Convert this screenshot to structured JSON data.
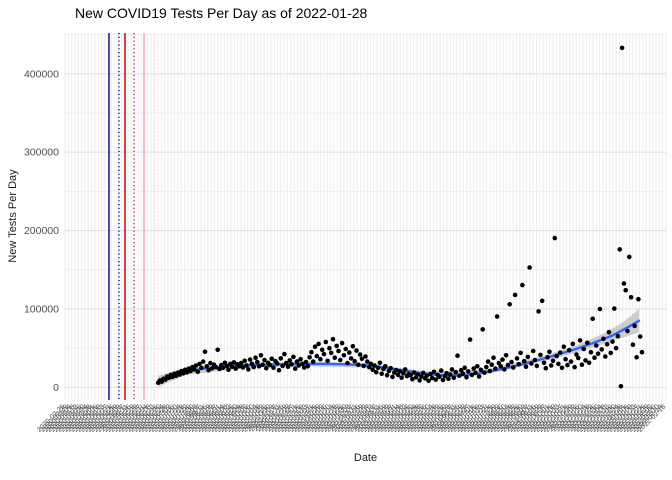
{
  "chart_data": {
    "type": "scatter",
    "title": "New COVID19 Tests Per Day as of 2022-01-28",
    "xlabel": "Date",
    "ylabel": "New Tests Per Day",
    "ylim": [
      -16000,
      452000
    ],
    "y_ticks_major": [
      0,
      100000,
      200000,
      300000,
      400000
    ],
    "y_ticks_minor": [
      50000,
      150000,
      250000,
      350000,
      450000
    ],
    "x_axis_dates": {
      "start": "2020-02-25",
      "step_days": 4,
      "count": 182
    },
    "legend": "none",
    "grid": "on",
    "colors": {
      "grid_major": "#E2E2E2",
      "grid_minor": "#EDEDED",
      "point": "#000000",
      "smooth_line": "#3366FF",
      "smooth_band": "rgba(150,150,150,0.45)",
      "axis_text": "#4D4D4D",
      "title_text": "#000000"
    },
    "point_radius": 2.3,
    "event_vlines": [
      {
        "frac": 0.0732,
        "color": "#00008B",
        "style": "solid",
        "width": 1.4
      },
      {
        "frac": 0.0898,
        "color": "#0000CD",
        "style": "dotted",
        "width": 1.4
      },
      {
        "frac": 0.0998,
        "color": "#DD1111",
        "style": "solid",
        "width": 1.6
      },
      {
        "frac": 0.1148,
        "color": "#CC2222",
        "style": "dotted",
        "width": 1.4
      },
      {
        "frac": 0.1314,
        "color": "#FFB3C6",
        "style": "solid",
        "width": 1.8
      },
      {
        "frac": 0.1481,
        "color": "#FFD3DD",
        "style": "dotted",
        "width": 1.4
      }
    ],
    "smooth_line": [
      [
        0.155,
        8000
      ],
      [
        0.17,
        13000
      ],
      [
        0.19,
        18000
      ],
      [
        0.21,
        21500
      ],
      [
        0.24,
        25000
      ],
      [
        0.28,
        27500
      ],
      [
        0.32,
        28600
      ],
      [
        0.36,
        29500
      ],
      [
        0.4,
        30000
      ],
      [
        0.44,
        30000
      ],
      [
        0.47,
        29500
      ],
      [
        0.5,
        28000
      ],
      [
        0.53,
        25500
      ],
      [
        0.56,
        22000
      ],
      [
        0.59,
        18500
      ],
      [
        0.62,
        16000
      ],
      [
        0.64,
        15000
      ],
      [
        0.66,
        15500
      ],
      [
        0.68,
        17000
      ],
      [
        0.7,
        19500
      ],
      [
        0.73,
        24000
      ],
      [
        0.76,
        29500
      ],
      [
        0.79,
        35500
      ],
      [
        0.82,
        42000
      ],
      [
        0.85,
        49000
      ],
      [
        0.88,
        57000
      ],
      [
        0.91,
        66000
      ],
      [
        0.93,
        74000
      ],
      [
        0.955,
        85000
      ]
    ],
    "smooth_band": [
      [
        0.155,
        1000,
        15000
      ],
      [
        0.2,
        15500,
        24500
      ],
      [
        0.3,
        25000,
        31000
      ],
      [
        0.4,
        27000,
        33000
      ],
      [
        0.5,
        25000,
        31000
      ],
      [
        0.6,
        14500,
        20500
      ],
      [
        0.7,
        16500,
        22500
      ],
      [
        0.8,
        34000,
        41000
      ],
      [
        0.85,
        44500,
        53500
      ],
      [
        0.9,
        56000,
        70000
      ],
      [
        0.93,
        64000,
        84000
      ],
      [
        0.955,
        70000,
        100000
      ]
    ],
    "points": [
      [
        0.155,
        6000
      ],
      [
        0.158,
        9000
      ],
      [
        0.161,
        7500
      ],
      [
        0.164,
        11000
      ],
      [
        0.167,
        10000
      ],
      [
        0.17,
        14000
      ],
      [
        0.173,
        12500
      ],
      [
        0.176,
        16000
      ],
      [
        0.179,
        13500
      ],
      [
        0.182,
        17500
      ],
      [
        0.185,
        15000
      ],
      [
        0.188,
        19000
      ],
      [
        0.191,
        16500
      ],
      [
        0.194,
        21000
      ],
      [
        0.197,
        18000
      ],
      [
        0.2,
        22500
      ],
      [
        0.203,
        19500
      ],
      [
        0.206,
        24000
      ],
      [
        0.209,
        21000
      ],
      [
        0.212,
        26000
      ],
      [
        0.215,
        23000
      ],
      [
        0.218,
        28000
      ],
      [
        0.221,
        20000
      ],
      [
        0.224,
        30000
      ],
      [
        0.227,
        25000
      ],
      [
        0.23,
        33000
      ],
      [
        0.233,
        45500
      ],
      [
        0.236,
        27000
      ],
      [
        0.239,
        22000
      ],
      [
        0.242,
        31000
      ],
      [
        0.245,
        24500
      ],
      [
        0.248,
        29000
      ],
      [
        0.251,
        26000
      ],
      [
        0.254,
        48000
      ],
      [
        0.257,
        23500
      ],
      [
        0.26,
        28500
      ],
      [
        0.263,
        25000
      ],
      [
        0.266,
        31500
      ],
      [
        0.269,
        27500
      ],
      [
        0.272,
        22500
      ],
      [
        0.275,
        30000
      ],
      [
        0.278,
        26500
      ],
      [
        0.281,
        32000
      ],
      [
        0.284,
        24000
      ],
      [
        0.287,
        29500
      ],
      [
        0.29,
        27000
      ],
      [
        0.293,
        31000
      ],
      [
        0.296,
        25500
      ],
      [
        0.299,
        34000
      ],
      [
        0.302,
        28000
      ],
      [
        0.305,
        23000
      ],
      [
        0.308,
        35500
      ],
      [
        0.311,
        30000
      ],
      [
        0.314,
        26000
      ],
      [
        0.317,
        38000
      ],
      [
        0.32,
        32500
      ],
      [
        0.323,
        27000
      ],
      [
        0.326,
        41000
      ],
      [
        0.329,
        29000
      ],
      [
        0.332,
        35000
      ],
      [
        0.335,
        24500
      ],
      [
        0.338,
        31500
      ],
      [
        0.341,
        28500
      ],
      [
        0.344,
        36500
      ],
      [
        0.347,
        25000
      ],
      [
        0.35,
        33500
      ],
      [
        0.353,
        30500
      ],
      [
        0.356,
        22000
      ],
      [
        0.359,
        37000
      ],
      [
        0.362,
        27500
      ],
      [
        0.365,
        42500
      ],
      [
        0.368,
        31000
      ],
      [
        0.371,
        26500
      ],
      [
        0.374,
        34500
      ],
      [
        0.377,
        29500
      ],
      [
        0.38,
        39000
      ],
      [
        0.383,
        24000
      ],
      [
        0.386,
        33000
      ],
      [
        0.389,
        28000
      ],
      [
        0.392,
        36000
      ],
      [
        0.395,
        30000
      ],
      [
        0.398,
        25500
      ],
      [
        0.401,
        32500
      ],
      [
        0.404,
        27000
      ],
      [
        0.407,
        38500
      ],
      [
        0.41,
        45000
      ],
      [
        0.413,
        33000
      ],
      [
        0.416,
        52000
      ],
      [
        0.419,
        40000
      ],
      [
        0.422,
        55500
      ],
      [
        0.425,
        36000
      ],
      [
        0.428,
        48000
      ],
      [
        0.431,
        42500
      ],
      [
        0.434,
        58000
      ],
      [
        0.437,
        34000
      ],
      [
        0.44,
        50000
      ],
      [
        0.443,
        44000
      ],
      [
        0.446,
        61500
      ],
      [
        0.449,
        38000
      ],
      [
        0.452,
        53000
      ],
      [
        0.455,
        46500
      ],
      [
        0.458,
        35000
      ],
      [
        0.461,
        56500
      ],
      [
        0.464,
        41000
      ],
      [
        0.467,
        49000
      ],
      [
        0.47,
        31000
      ],
      [
        0.473,
        44500
      ],
      [
        0.476,
        37000
      ],
      [
        0.479,
        52500
      ],
      [
        0.482,
        33500
      ],
      [
        0.485,
        47000
      ],
      [
        0.488,
        29000
      ],
      [
        0.491,
        42000
      ],
      [
        0.494,
        36500
      ],
      [
        0.497,
        27500
      ],
      [
        0.5,
        39500
      ],
      [
        0.503,
        33000
      ],
      [
        0.506,
        26000
      ],
      [
        0.509,
        30000
      ],
      [
        0.512,
        22500
      ],
      [
        0.515,
        28000
      ],
      [
        0.518,
        19500
      ],
      [
        0.521,
        25000
      ],
      [
        0.524,
        31500
      ],
      [
        0.527,
        17500
      ],
      [
        0.53,
        23500
      ],
      [
        0.533,
        27000
      ],
      [
        0.536,
        15500
      ],
      [
        0.539,
        21000
      ],
      [
        0.542,
        24500
      ],
      [
        0.545,
        13500
      ],
      [
        0.548,
        19000
      ],
      [
        0.551,
        22000
      ],
      [
        0.554,
        16000
      ],
      [
        0.557,
        20500
      ],
      [
        0.56,
        12500
      ],
      [
        0.563,
        18000
      ],
      [
        0.566,
        23000
      ],
      [
        0.569,
        14500
      ],
      [
        0.572,
        17000
      ],
      [
        0.575,
        15500
      ],
      [
        0.578,
        10500
      ],
      [
        0.581,
        19000
      ],
      [
        0.584,
        13000
      ],
      [
        0.587,
        16500
      ],
      [
        0.59,
        9000
      ],
      [
        0.593,
        14000
      ],
      [
        0.596,
        18500
      ],
      [
        0.599,
        11500
      ],
      [
        0.602,
        15000
      ],
      [
        0.605,
        8500
      ],
      [
        0.608,
        17000
      ],
      [
        0.611,
        12000
      ],
      [
        0.614,
        20000
      ],
      [
        0.617,
        10000
      ],
      [
        0.62,
        16000
      ],
      [
        0.623,
        13500
      ],
      [
        0.626,
        21500
      ],
      [
        0.629,
        9500
      ],
      [
        0.632,
        14500
      ],
      [
        0.635,
        18000
      ],
      [
        0.638,
        11000
      ],
      [
        0.641,
        16500
      ],
      [
        0.644,
        23000
      ],
      [
        0.647,
        12500
      ],
      [
        0.65,
        19500
      ],
      [
        0.653,
        40500
      ],
      [
        0.656,
        15000
      ],
      [
        0.659,
        22000
      ],
      [
        0.662,
        17500
      ],
      [
        0.665,
        25000
      ],
      [
        0.668,
        13000
      ],
      [
        0.671,
        20500
      ],
      [
        0.674,
        61000
      ],
      [
        0.677,
        16000
      ],
      [
        0.68,
        24000
      ],
      [
        0.683,
        18500
      ],
      [
        0.686,
        27000
      ],
      [
        0.689,
        14000
      ],
      [
        0.692,
        22500
      ],
      [
        0.695,
        74000
      ],
      [
        0.698,
        19000
      ],
      [
        0.701,
        26000
      ],
      [
        0.704,
        33000
      ],
      [
        0.707,
        21000
      ],
      [
        0.71,
        29000
      ],
      [
        0.713,
        38000
      ],
      [
        0.716,
        24000
      ],
      [
        0.719,
        90500
      ],
      [
        0.722,
        31000
      ],
      [
        0.725,
        27000
      ],
      [
        0.728,
        35500
      ],
      [
        0.731,
        23000
      ],
      [
        0.734,
        41000
      ],
      [
        0.737,
        28500
      ],
      [
        0.74,
        106000
      ],
      [
        0.743,
        32500
      ],
      [
        0.746,
        25500
      ],
      [
        0.749,
        118000
      ],
      [
        0.752,
        37000
      ],
      [
        0.755,
        29500
      ],
      [
        0.758,
        44000
      ],
      [
        0.761,
        130500
      ],
      [
        0.764,
        33500
      ],
      [
        0.767,
        26500
      ],
      [
        0.77,
        39000
      ],
      [
        0.773,
        153000
      ],
      [
        0.776,
        30500
      ],
      [
        0.779,
        46500
      ],
      [
        0.782,
        35000
      ],
      [
        0.785,
        27500
      ],
      [
        0.788,
        97000
      ],
      [
        0.791,
        41500
      ],
      [
        0.794,
        110500
      ],
      [
        0.797,
        31500
      ],
      [
        0.8,
        24500
      ],
      [
        0.803,
        38500
      ],
      [
        0.806,
        45500
      ],
      [
        0.809,
        28000
      ],
      [
        0.812,
        34000
      ],
      [
        0.815,
        190500
      ],
      [
        0.818,
        40000
      ],
      [
        0.821,
        30000
      ],
      [
        0.824,
        44500
      ],
      [
        0.827,
        25000
      ],
      [
        0.83,
        52000
      ],
      [
        0.833,
        36000
      ],
      [
        0.836,
        28500
      ],
      [
        0.839,
        47500
      ],
      [
        0.842,
        33000
      ],
      [
        0.845,
        55500
      ],
      [
        0.848,
        26000
      ],
      [
        0.851,
        42000
      ],
      [
        0.854,
        37500
      ],
      [
        0.857,
        60000
      ],
      [
        0.86,
        29000
      ],
      [
        0.863,
        49000
      ],
      [
        0.866,
        34500
      ],
      [
        0.869,
        57000
      ],
      [
        0.872,
        31500
      ],
      [
        0.875,
        45000
      ],
      [
        0.878,
        87500
      ],
      [
        0.881,
        38000
      ],
      [
        0.884,
        53500
      ],
      [
        0.887,
        43000
      ],
      [
        0.89,
        100000
      ],
      [
        0.893,
        48500
      ],
      [
        0.896,
        62000
      ],
      [
        0.899,
        39500
      ],
      [
        0.902,
        55000
      ],
      [
        0.905,
        70500
      ],
      [
        0.908,
        44000
      ],
      [
        0.911,
        58500
      ],
      [
        0.914,
        100500
      ],
      [
        0.917,
        50000
      ],
      [
        0.92,
        65500
      ],
      [
        0.923,
        176000
      ],
      [
        0.925,
        1500
      ],
      [
        0.927,
        433000
      ],
      [
        0.93,
        132500
      ],
      [
        0.933,
        124000
      ],
      [
        0.936,
        72000
      ],
      [
        0.939,
        166500
      ],
      [
        0.942,
        115000
      ],
      [
        0.945,
        54500
      ],
      [
        0.948,
        78500
      ],
      [
        0.951,
        38500
      ],
      [
        0.954,
        112500
      ],
      [
        0.957,
        65000
      ],
      [
        0.96,
        45000
      ]
    ]
  }
}
